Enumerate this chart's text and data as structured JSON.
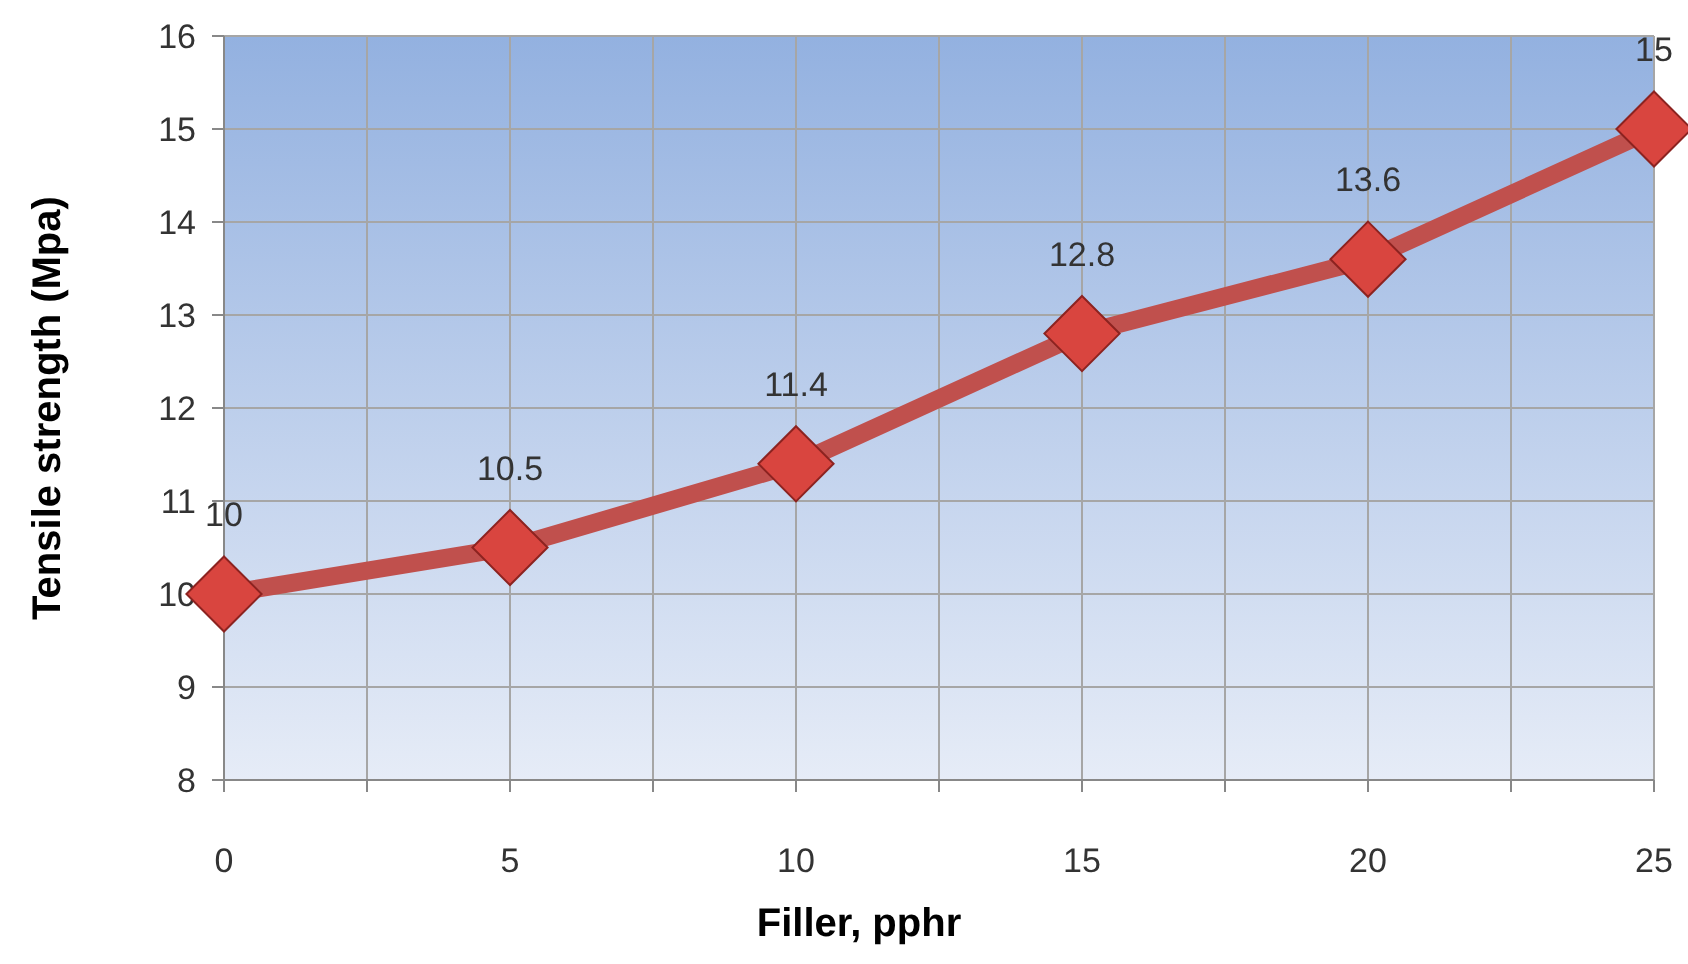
{
  "chart_data": {
    "type": "line",
    "xlabel": "Filler, pphr",
    "ylabel": "Tensile strength (Mpa)",
    "x": [
      0,
      5,
      10,
      15,
      20,
      25
    ],
    "series": [
      {
        "color": "#c0504d",
        "values": [
          10,
          10.5,
          11.4,
          12.8,
          13.6,
          15
        ]
      }
    ],
    "xlim": [
      0,
      25
    ],
    "xticks": [
      0,
      {
        "value": 2.5,
        "label": null
      },
      5,
      {
        "value": 7.5,
        "label": null
      },
      10,
      {
        "value": 12.5,
        "label": null
      },
      15,
      {
        "value": 17.5,
        "label": null
      },
      20,
      {
        "value": 22.5,
        "label": null
      },
      25
    ],
    "ylim": [
      8,
      16
    ],
    "yticks": [
      8,
      9,
      10,
      11,
      12,
      13,
      14,
      15,
      16
    ],
    "grid": true,
    "marker": "diamond",
    "line_style": "solid",
    "data_labels": true
  }
}
